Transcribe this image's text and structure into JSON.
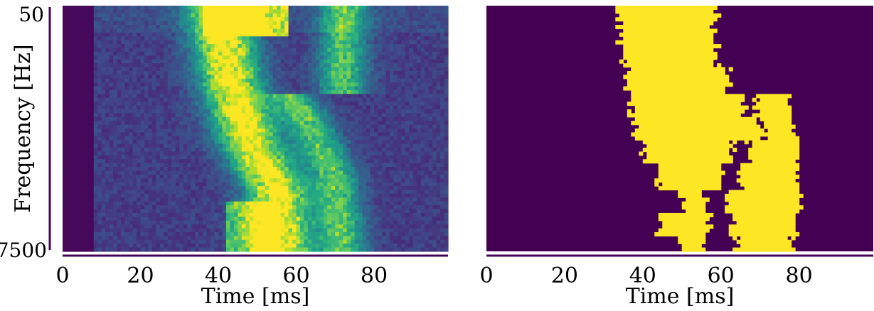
{
  "chart_data": [
    {
      "type": "heatmap",
      "panel": "left",
      "title": "",
      "xlabel": "Time [ms]",
      "ylabel": "Frequency [Hz]",
      "xlim": [
        0,
        99
      ],
      "x_ticks": [
        "0",
        "20",
        "40",
        "60",
        "80"
      ],
      "x_tick_values": [
        0,
        20,
        40,
        60,
        80
      ],
      "y_ticks": [
        "50",
        "7500"
      ],
      "y_tick_values": [
        50,
        7500
      ],
      "y_axis": "top-to-bottom",
      "colormap": "viridis",
      "value_range": [
        0,
        1
      ],
      "n_time_bins": 99,
      "n_freq_bins": 64,
      "silent_region_ms": [
        0,
        8.5
      ],
      "components": [
        {
          "name": "main sweep",
          "ridge_time_ms": [
            [
              0,
              40
            ],
            [
              0.3,
              43
            ],
            [
              0.55,
              48
            ],
            [
              0.75,
              55
            ],
            [
              1.0,
              56
            ]
          ],
          "width_ms": 8,
          "peak": 0.95
        },
        {
          "name": "upper band",
          "time_ms": [
            36,
            58
          ],
          "freq_frac": [
            0,
            0.12
          ],
          "peak": 0.9
        },
        {
          "name": "secondary sweep",
          "ridge_time_ms": [
            [
              0.35,
              58
            ],
            [
              0.5,
              64
            ],
            [
              0.7,
              70
            ],
            [
              1.0,
              72
            ]
          ],
          "width_ms": 6,
          "peak": 0.6
        },
        {
          "name": "lower left lobe",
          "time_ms": [
            42,
            56
          ],
          "freq_frac": [
            0.8,
            1.0
          ],
          "peak": 0.55
        }
      ]
    },
    {
      "type": "heatmap",
      "panel": "right",
      "title": "",
      "xlabel": "Time [ms]",
      "ylabel": "",
      "xlim": [
        0,
        99
      ],
      "x_ticks": [
        "0",
        "20",
        "40",
        "60",
        "80"
      ],
      "x_tick_values": [
        0,
        20,
        40,
        60,
        80
      ],
      "y_axis": "top-to-bottom",
      "colormap": "binary (viridis endpoints)",
      "values": "binary mask: 1 = active, 0 = inactive",
      "n_time_bins": 99,
      "n_freq_bins": 64,
      "mask_rows": [
        {
          "freq_frac": 0.0,
          "on_ms": [
            [
              33,
              59
            ]
          ]
        },
        {
          "freq_frac": 0.1,
          "on_ms": [
            [
              34,
              58
            ]
          ]
        },
        {
          "freq_frac": 0.2,
          "on_ms": [
            [
              35,
              59
            ]
          ]
        },
        {
          "freq_frac": 0.3,
          "on_ms": [
            [
              36,
              62
            ]
          ]
        },
        {
          "freq_frac": 0.4,
          "on_ms": [
            [
              37,
              66
            ],
            [
              69,
              77
            ]
          ]
        },
        {
          "freq_frac": 0.5,
          "on_ms": [
            [
              38,
              70
            ],
            [
              71,
              79
            ]
          ]
        },
        {
          "freq_frac": 0.6,
          "on_ms": [
            [
              40,
              63
            ],
            [
              67,
              80
            ]
          ]
        },
        {
          "freq_frac": 0.7,
          "on_ms": [
            [
              44,
              60
            ],
            [
              65,
              80
            ]
          ]
        },
        {
          "freq_frac": 0.8,
          "on_ms": [
            [
              50,
              56
            ],
            [
              61,
              80
            ]
          ]
        },
        {
          "freq_frac": 0.9,
          "on_ms": [
            [
              44,
              57
            ],
            [
              63,
              79
            ]
          ]
        },
        {
          "freq_frac": 1.0,
          "on_ms": [
            [
              50,
              56
            ],
            [
              64,
              78
            ]
          ]
        }
      ]
    }
  ],
  "colors": {
    "viridis_low": "#440154",
    "viridis_mid": "#21918c",
    "viridis_high": "#fde725",
    "mask_off": "#440154",
    "mask_on": "#fde725",
    "axis": "#440154"
  }
}
